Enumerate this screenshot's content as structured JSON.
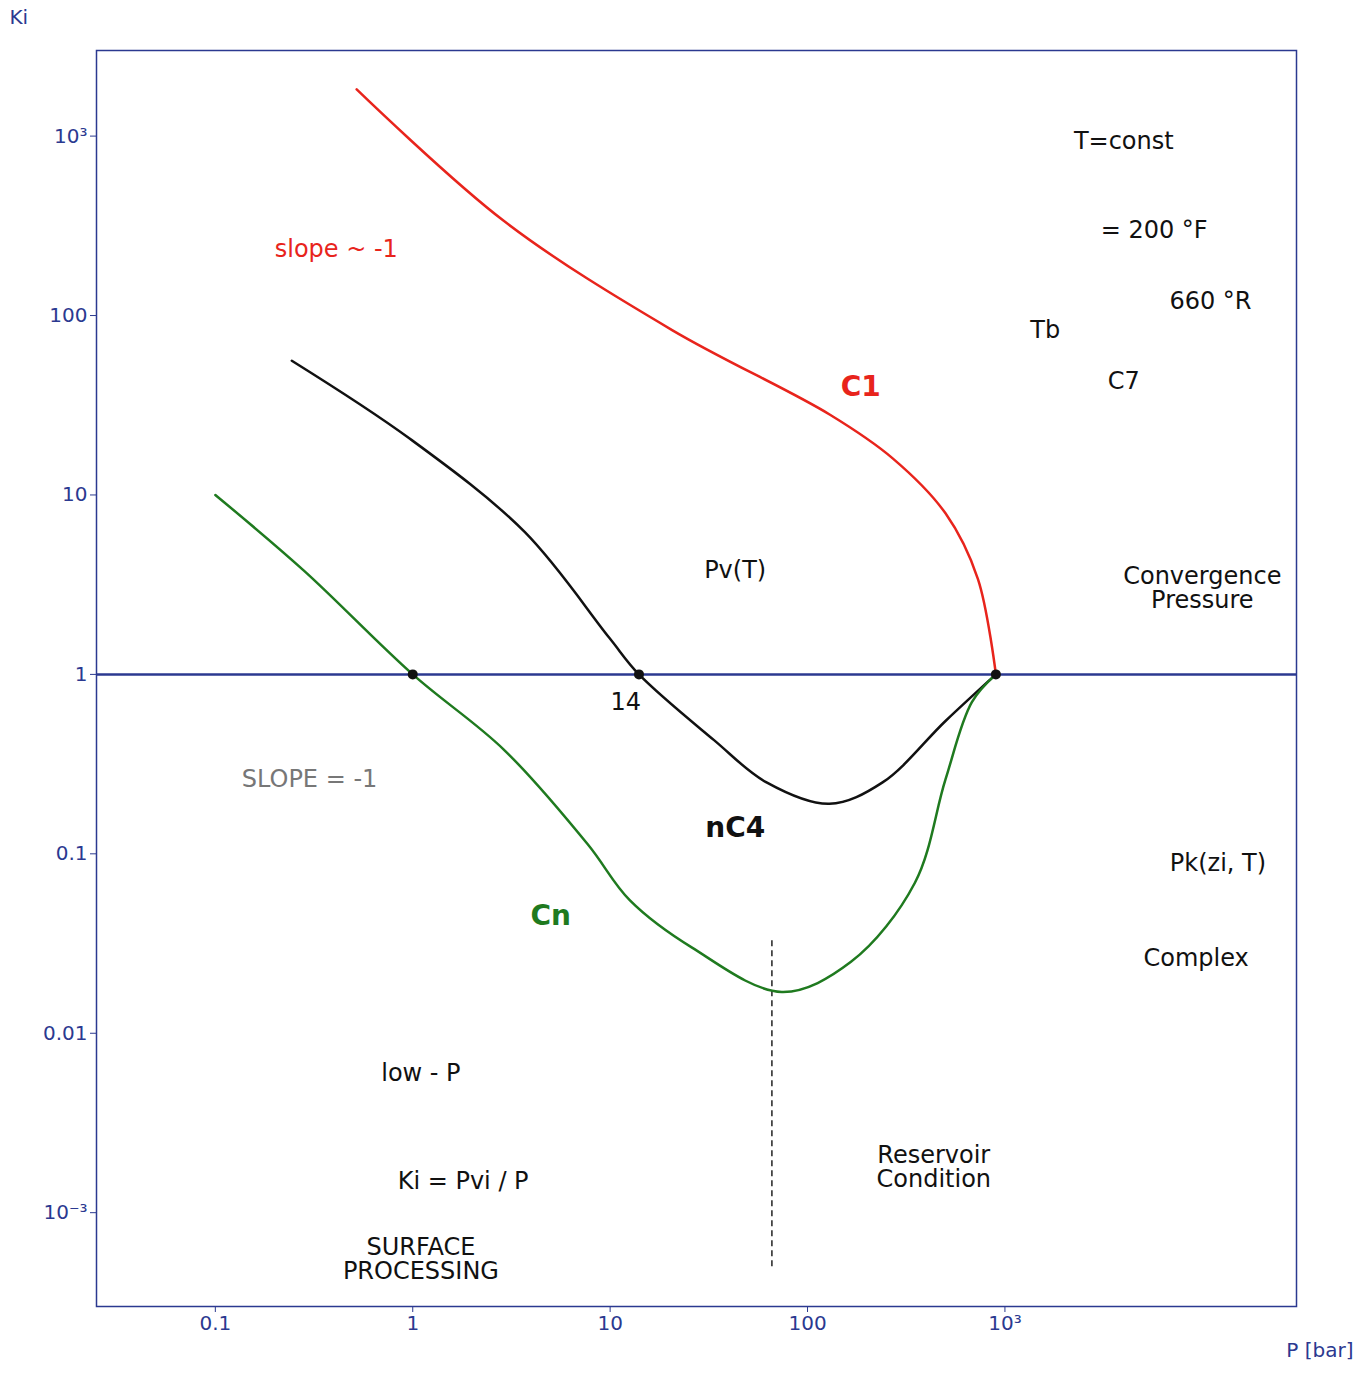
{
  "chart_data": {
    "type": "line",
    "log": true,
    "grid": false,
    "xlabel": "P [bar]",
    "ylabel": "Ki",
    "xlim": [
      0.025,
      30000
    ],
    "ylim": [
      0.0003,
      3000
    ],
    "xticks": [
      0.1,
      1,
      10,
      100,
      {
        "value": 1000,
        "label": "10³"
      }
    ],
    "yticks": [
      {
        "value": 0.001,
        "label": "10⁻³"
      },
      0.01,
      0.1,
      1,
      10,
      100,
      {
        "value": 1000,
        "label": "10³"
      }
    ],
    "series": [
      {
        "name": "C1",
        "color": "#e8241c",
        "label_at": [
          186,
          40
        ],
        "x": [
          0.52,
          2.9,
          20.6,
          130,
          270,
          500,
          730,
          900
        ],
        "values": [
          1820,
          336,
          83,
          28,
          16,
          7.9,
          3.4,
          1
        ]
      },
      {
        "name": "nC4",
        "color": "#111111",
        "label_at": [
          43,
          0.14
        ],
        "x": [
          0.244,
          0.96,
          3.7,
          9.9,
          14,
          33.6,
          62,
          129,
          240,
          500,
          900
        ],
        "values": [
          56,
          20.7,
          6.2,
          1.6,
          1,
          0.43,
          0.25,
          0.19,
          0.25,
          0.55,
          1
        ]
      },
      {
        "name": "Cn",
        "color": "#1f7a1f",
        "label_at": [
          5,
          0.045
        ],
        "x": [
          0.1,
          0.28,
          1,
          2.9,
          7.7,
          12.6,
          26,
          74,
          166,
          350,
          500,
          680,
          900
        ],
        "values": [
          10,
          3.8,
          1,
          0.38,
          0.113,
          0.055,
          0.03,
          0.017,
          0.025,
          0.069,
          0.26,
          0.7,
          1
        ]
      }
    ],
    "points": [
      {
        "x": 1,
        "y": 1
      },
      {
        "x": 14,
        "y": 1
      },
      {
        "x": 900,
        "y": 1
      }
    ],
    "hlines": [
      1
    ],
    "vlines": [
      {
        "x": 66,
        "y1": 0.0005,
        "y2": 0.034
      }
    ],
    "annotations": [
      {
        "text": "slope ~ -1",
        "x": 0.41,
        "y": 234,
        "color": "#e8241c"
      },
      {
        "text": "SLOPE = -1",
        "x": 0.3,
        "y": 0.26,
        "color": "#777777"
      },
      {
        "text": "Pv(T)",
        "x": 43,
        "y": 3.8,
        "color": "#111111"
      },
      {
        "text": "14",
        "x": 12,
        "y": 0.7,
        "color": "#111111"
      },
      {
        "text": "Convergence Pressure",
        "x": 10000,
        "y": 3,
        "color": "#111111"
      },
      {
        "text": "Pk(zi, T)",
        "x": 12000,
        "y": 0.088,
        "color": "#111111"
      },
      {
        "text": "Complex",
        "x": 9300,
        "y": 0.026,
        "color": "#111111"
      },
      {
        "text": "T=const",
        "x": 4000,
        "y": 940,
        "color": "#111111"
      },
      {
        "text": "= 200 °F",
        "x": 5700,
        "y": 300,
        "color": "#111111"
      },
      {
        "text": "660 °R",
        "x": 11000,
        "y": 120,
        "color": "#111111"
      },
      {
        "text": "Tb",
        "x": 1600,
        "y": 83,
        "color": "#111111"
      },
      {
        "text": "C7",
        "x": 4000,
        "y": 43,
        "color": "#111111"
      },
      {
        "text": "low - P",
        "x": 1.1,
        "y": 0.006,
        "color": "#111111"
      },
      {
        "text": "Ki = Pvi / P",
        "x": 1.8,
        "y": 0.0015,
        "color": "#111111"
      },
      {
        "text": "SURFACE PROCESSING",
        "x": 1.1,
        "y": 0.00055,
        "color": "#111111"
      },
      {
        "text": "Reservoir Condition",
        "x": 436,
        "y": 0.0018,
        "color": "#111111"
      }
    ]
  }
}
